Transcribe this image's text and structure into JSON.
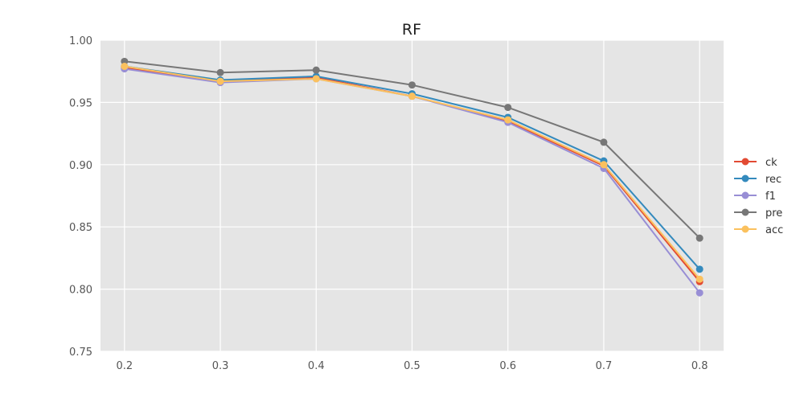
{
  "chart_data": {
    "type": "line",
    "title": "RF",
    "xlabel": "",
    "ylabel": "",
    "x": [
      0.2,
      0.3,
      0.4,
      0.5,
      0.6,
      0.7,
      0.8
    ],
    "x_tick_labels": [
      "0.2",
      "0.3",
      "0.4",
      "0.5",
      "0.6",
      "0.7",
      "0.8"
    ],
    "y_ticks": [
      0.75,
      0.8,
      0.85,
      0.9,
      0.95,
      1.0
    ],
    "y_tick_labels": [
      "0.75",
      "0.80",
      "0.85",
      "0.90",
      "0.95",
      "1.00"
    ],
    "xlim": [
      0.175,
      0.825
    ],
    "ylim": [
      0.75,
      1.0
    ],
    "grid": true,
    "legend_position": "right",
    "background_color": "#e5e5e5",
    "series": [
      {
        "name": "ck",
        "color": "#e24a33",
        "values": [
          0.978,
          0.967,
          0.97,
          0.955,
          0.935,
          0.899,
          0.806
        ]
      },
      {
        "name": "rec",
        "color": "#348abd",
        "values": [
          0.979,
          0.968,
          0.971,
          0.957,
          0.938,
          0.903,
          0.816
        ]
      },
      {
        "name": "f1",
        "color": "#988ed5",
        "values": [
          0.977,
          0.966,
          0.969,
          0.955,
          0.934,
          0.897,
          0.797
        ]
      },
      {
        "name": "pre",
        "color": "#777777",
        "values": [
          0.983,
          0.974,
          0.976,
          0.964,
          0.946,
          0.918,
          0.841
        ]
      },
      {
        "name": "acc",
        "color": "#fbc15e",
        "values": [
          0.979,
          0.967,
          0.969,
          0.955,
          0.936,
          0.9,
          0.808
        ]
      }
    ]
  }
}
